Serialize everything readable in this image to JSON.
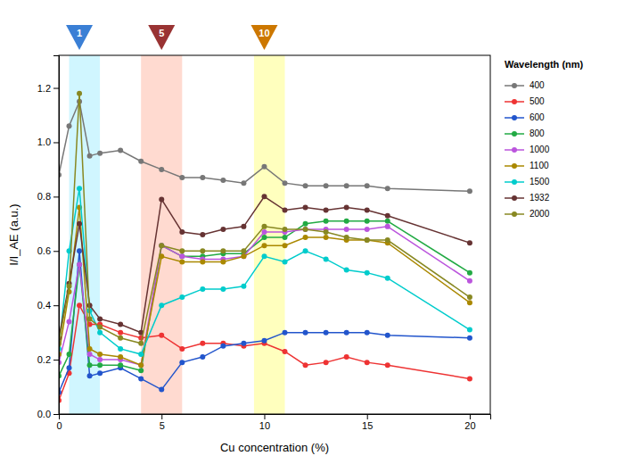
{
  "chart_data": {
    "type": "line",
    "xlabel": "Cu concentration (%)",
    "ylabel": "I/I_AE (a.u.)",
    "x": [
      0,
      0.5,
      1.0,
      1.5,
      2.0,
      3.0,
      4.0,
      5.0,
      6.0,
      7.0,
      8.0,
      9.0,
      10.0,
      11.0,
      12.0,
      13.0,
      14.0,
      15.0,
      16.0,
      20.0
    ],
    "xlim": [
      0,
      21
    ],
    "ylim": [
      0,
      1.32
    ],
    "xticks": [
      0,
      5,
      10,
      15,
      20
    ],
    "yticks": [
      {
        "value": 0,
        "label": "0.0"
      },
      0.2,
      0.4,
      0.6,
      0.8,
      {
        "value": 1,
        "label": "1.0"
      },
      1.2
    ],
    "grid": false,
    "marker": "circle",
    "legend": "right",
    "legend_title": "Wavelength (nm)",
    "bands": [
      {
        "xmin": 0.5,
        "xmax": 2.0,
        "color": "#aaeeff"
      },
      {
        "xmin": 4.0,
        "xmax": 6.0,
        "color": "#ffbbaa"
      },
      {
        "xmin": 9.5,
        "xmax": 11.0,
        "color": "#ffff88"
      }
    ],
    "annotations": [
      {
        "x": 1.0,
        "label": "1",
        "color": "#3a7fd5"
      },
      {
        "x": 5.0,
        "label": "5",
        "color": "#993333"
      },
      {
        "x": 10.0,
        "label": "10",
        "color": "#cc7700"
      }
    ],
    "series": [
      {
        "name": "400",
        "color": "#777777",
        "values": [
          0.88,
          1.06,
          1.15,
          0.95,
          0.96,
          0.97,
          0.93,
          0.9,
          0.87,
          0.87,
          0.86,
          0.85,
          0.91,
          0.85,
          0.84,
          0.84,
          0.84,
          0.84,
          0.83,
          0.82
        ]
      },
      {
        "name": "500",
        "color": "#ee3333",
        "values": [
          0.05,
          0.15,
          0.4,
          0.33,
          0.33,
          0.3,
          0.28,
          0.29,
          0.24,
          0.26,
          0.26,
          0.25,
          0.26,
          0.23,
          0.18,
          0.19,
          0.21,
          0.19,
          0.18,
          0.13
        ]
      },
      {
        "name": "600",
        "color": "#2255cc",
        "values": [
          0.08,
          0.17,
          0.6,
          0.14,
          0.15,
          0.17,
          0.13,
          0.09,
          0.19,
          0.21,
          0.25,
          0.26,
          0.27,
          0.3,
          0.3,
          0.3,
          0.3,
          0.3,
          0.29,
          0.28
        ]
      },
      {
        "name": "800",
        "color": "#22aa44",
        "values": [
          0.14,
          0.22,
          0.55,
          0.18,
          0.18,
          0.18,
          0.16,
          0.62,
          0.58,
          0.58,
          0.59,
          0.59,
          0.65,
          0.65,
          0.7,
          0.71,
          0.71,
          0.71,
          0.71,
          0.52
        ]
      },
      {
        "name": "1000",
        "color": "#bb55dd",
        "values": [
          0.19,
          0.34,
          0.55,
          0.22,
          0.2,
          0.2,
          0.18,
          0.62,
          0.58,
          0.57,
          0.57,
          0.58,
          0.67,
          0.67,
          0.68,
          0.68,
          0.68,
          0.68,
          0.69,
          0.49
        ]
      },
      {
        "name": "1100",
        "color": "#aa8800",
        "values": [
          0.22,
          0.45,
          0.76,
          0.24,
          0.22,
          0.21,
          0.18,
          0.58,
          0.56,
          0.56,
          0.56,
          0.58,
          0.62,
          0.62,
          0.65,
          0.65,
          0.64,
          0.64,
          0.63,
          0.41
        ]
      },
      {
        "name": "1500",
        "color": "#00cccc",
        "values": [
          0.24,
          0.6,
          0.83,
          0.38,
          0.3,
          0.24,
          0.22,
          0.4,
          0.43,
          0.46,
          0.46,
          0.47,
          0.58,
          0.56,
          0.6,
          0.57,
          0.53,
          0.52,
          0.5,
          0.31
        ]
      },
      {
        "name": "1932",
        "color": "#663333",
        "values": [
          0.28,
          0.48,
          0.7,
          0.4,
          0.35,
          0.33,
          0.3,
          0.79,
          0.67,
          0.66,
          0.68,
          0.69,
          0.8,
          0.75,
          0.76,
          0.75,
          0.76,
          0.75,
          0.73,
          0.63
        ]
      },
      {
        "name": "2000",
        "color": "#888822",
        "values": [
          0.26,
          0.47,
          1.18,
          0.35,
          0.32,
          0.28,
          0.26,
          0.62,
          0.6,
          0.6,
          0.6,
          0.6,
          0.69,
          0.68,
          0.68,
          0.67,
          0.65,
          0.64,
          0.64,
          0.43
        ]
      }
    ]
  }
}
